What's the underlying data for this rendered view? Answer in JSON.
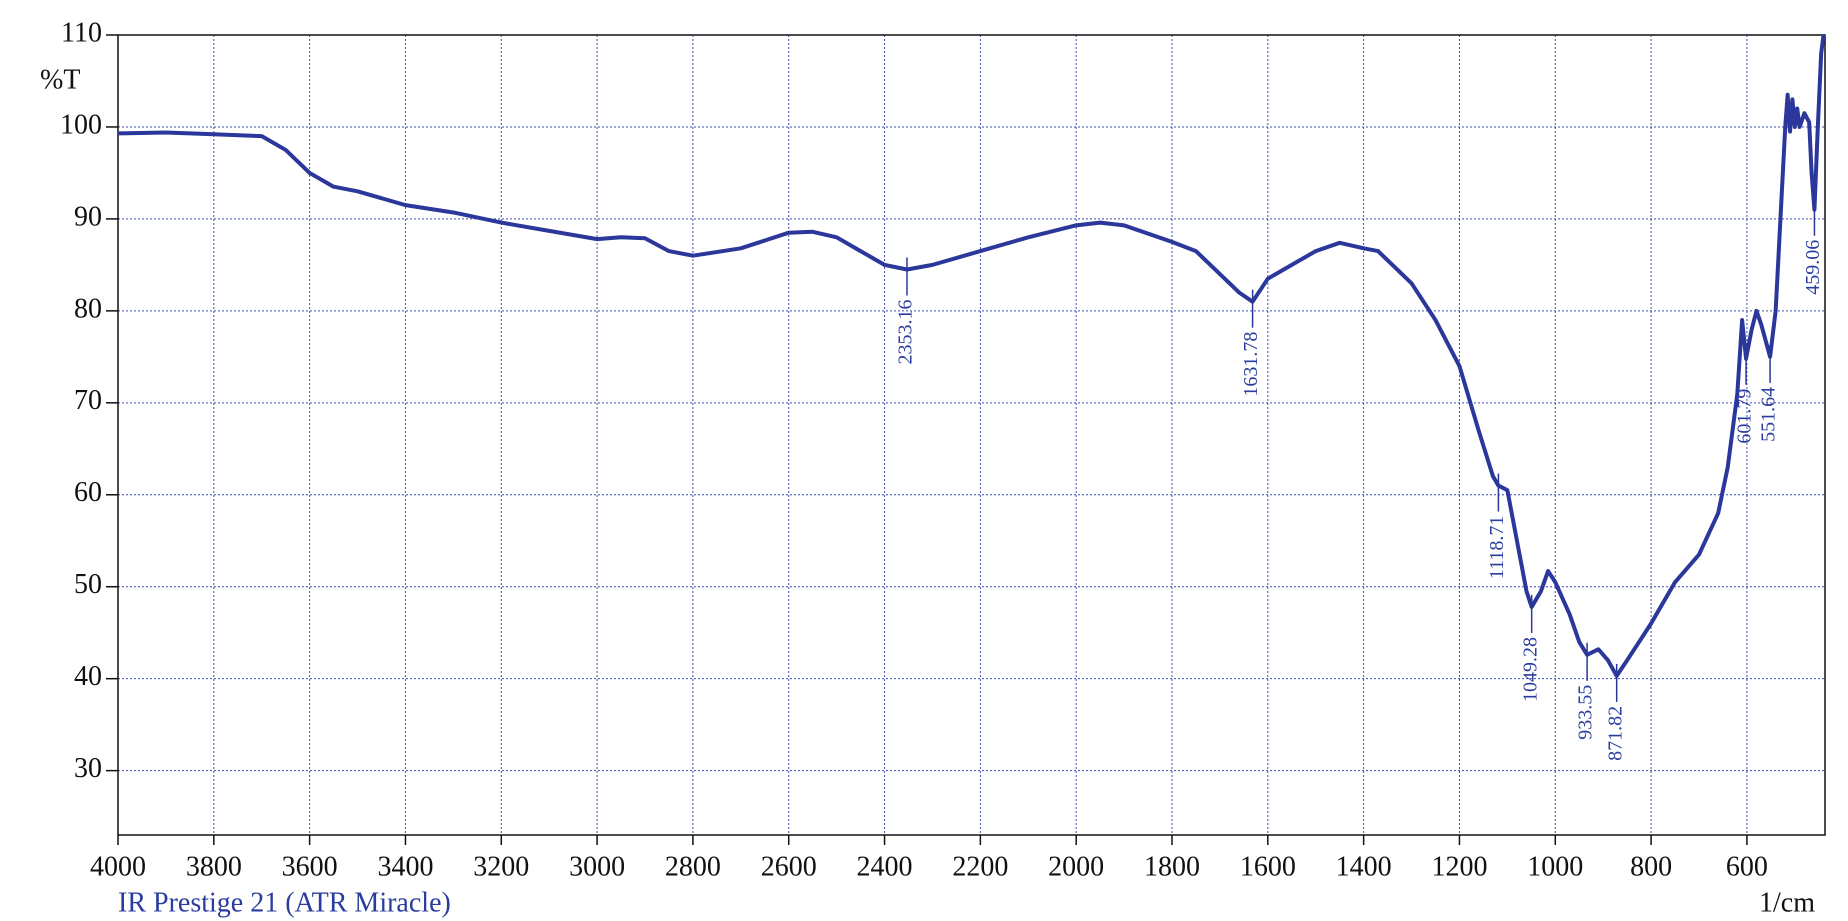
{
  "chart_data": {
    "type": "line",
    "subtitle": "IR Prestige 21 (ATR Miracle)",
    "ylabel": "%T",
    "xlabel": "1/cm",
    "color": "#2b379b",
    "x": [
      4000,
      3900,
      3800,
      3700,
      3650,
      3600,
      3550,
      3500,
      3400,
      3300,
      3200,
      3100,
      3000,
      2950,
      2900,
      2850,
      2800,
      2700,
      2600,
      2550,
      2500,
      2450,
      2400,
      2353.16,
      2300,
      2200,
      2100,
      2000,
      1950,
      1900,
      1800,
      1750,
      1700,
      1660,
      1631.78,
      1600,
      1550,
      1500,
      1450,
      1400,
      1370,
      1300,
      1250,
      1200,
      1160,
      1130,
      1118.71,
      1100,
      1080,
      1060,
      1049.28,
      1030,
      1015,
      1000,
      970,
      950,
      933.55,
      910,
      890,
      871.82,
      850,
      800,
      750,
      700,
      660,
      640,
      620,
      610,
      601.79,
      590,
      580,
      570,
      551.64,
      540,
      530,
      520,
      515,
      510,
      505,
      500,
      495,
      490,
      480,
      470,
      465,
      459.06,
      452,
      445,
      440
    ],
    "values": [
      99.3,
      99.4,
      99.2,
      99.0,
      97.5,
      95,
      93.5,
      93,
      91.5,
      90.7,
      89.6,
      88.7,
      87.8,
      88,
      87.9,
      86.5,
      86,
      86.8,
      88.5,
      88.6,
      88,
      86.5,
      85,
      84.5,
      85,
      86.5,
      88,
      89.3,
      89.6,
      89.3,
      87.5,
      86.5,
      84,
      82,
      81,
      83.5,
      85,
      86.5,
      87.4,
      86.8,
      86.5,
      83,
      79,
      74,
      67,
      62,
      61,
      60.5,
      55,
      49.5,
      47.8,
      49.5,
      51.7,
      50.5,
      47,
      44,
      42.6,
      43.2,
      42,
      40.3,
      42,
      46,
      50.5,
      53.5,
      58,
      63,
      71,
      79,
      74.8,
      78,
      80,
      78.5,
      75,
      80,
      90,
      100,
      103.5,
      99.5,
      103,
      100,
      102,
      100,
      101.5,
      100.5,
      95,
      91,
      100,
      108,
      110
    ],
    "peaks": [
      {
        "x": 2353.16,
        "y": 84.5
      },
      {
        "x": 1631.78,
        "y": 81
      },
      {
        "x": 1118.71,
        "y": 61
      },
      {
        "x": 1049.28,
        "y": 47.8
      },
      {
        "x": 933.55,
        "y": 42.6
      },
      {
        "x": 871.82,
        "y": 40.3
      },
      {
        "x": 601.79,
        "y": 74.8
      },
      {
        "x": 551.64,
        "y": 75
      },
      {
        "x": 459.06,
        "y": 91
      }
    ],
    "xlim": [
      4000,
      437
    ],
    "ylim": [
      23,
      110
    ],
    "xticks": [
      4000,
      3800,
      3600,
      3400,
      3200,
      3000,
      2800,
      2600,
      2400,
      2200,
      2000,
      1800,
      1600,
      1400,
      1200,
      1000,
      800,
      600
    ],
    "yticks": [
      30,
      40,
      50,
      60,
      70,
      80,
      90,
      100,
      110
    ],
    "grid": true
  }
}
